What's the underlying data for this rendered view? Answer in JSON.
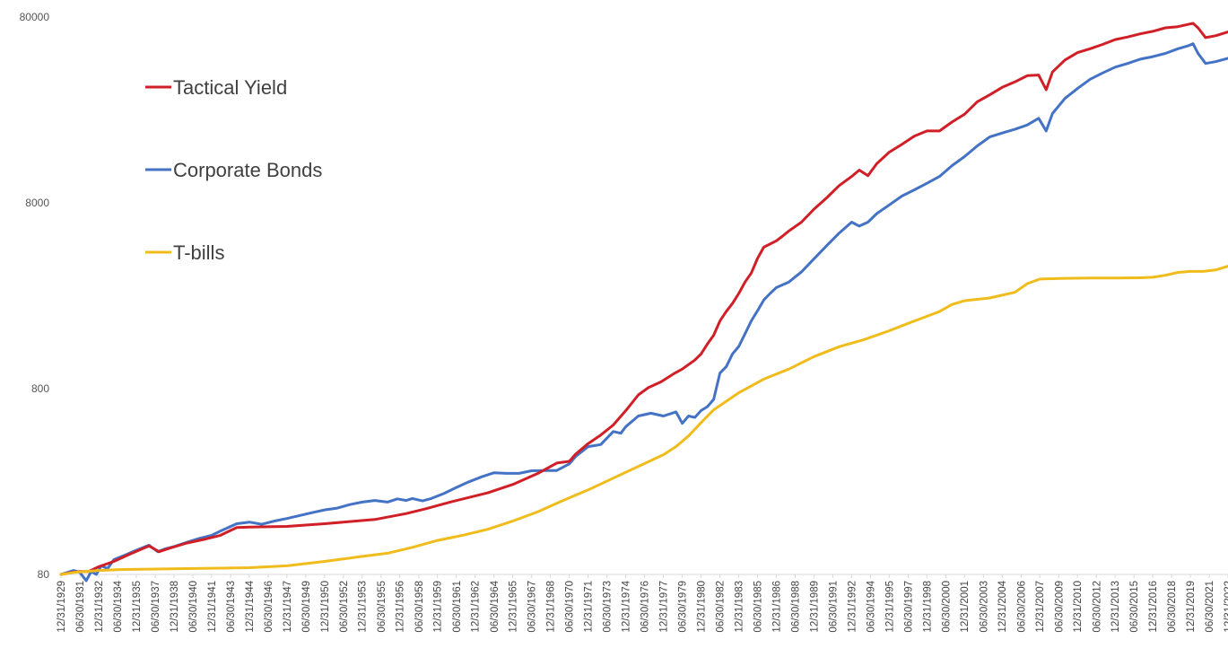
{
  "chart_data": {
    "type": "line",
    "title": "",
    "xlabel": "",
    "ylabel": "",
    "y_scale": "log",
    "ylim": [
      80,
      80000
    ],
    "grid": false,
    "legend_position": "top-left",
    "y_ticks": [
      "80000",
      "8000",
      "800",
      "80"
    ],
    "x_tick_labels": [
      "12/31/1929",
      "06/30/1931",
      "12/31/1932",
      "06/30/1934",
      "12/31/1935",
      "06/30/1937",
      "12/31/1938",
      "06/30/1940",
      "12/31/1941",
      "06/30/1943",
      "12/31/1944",
      "06/30/1946",
      "12/31/1947",
      "06/30/1949",
      "12/31/1950",
      "06/30/1952",
      "12/31/1953",
      "06/30/1955",
      "12/31/1956",
      "06/30/1958",
      "12/31/1959",
      "06/30/1961",
      "12/31/1962",
      "06/30/1964",
      "12/31/1965",
      "06/30/1967",
      "12/31/1968",
      "06/30/1970",
      "12/31/1971",
      "06/30/1973",
      "12/31/1974",
      "06/30/1976",
      "12/31/1977",
      "06/30/1979",
      "12/31/1980",
      "06/30/1982",
      "12/31/1983",
      "06/30/1985",
      "12/31/1986",
      "06/30/1988",
      "12/31/1989",
      "06/30/1991",
      "12/31/1992",
      "06/30/1994",
      "12/31/1995",
      "06/30/1997",
      "12/31/1998",
      "06/30/2000",
      "12/31/2001",
      "06/30/2003",
      "12/31/2004",
      "06/30/2006",
      "12/31/2007",
      "06/30/2009",
      "12/31/2010",
      "06/30/2012",
      "12/31/2013",
      "06/30/2015",
      "12/31/2016",
      "06/30/2018",
      "12/31/2019",
      "06/30/2021",
      "12/31/2022"
    ],
    "x_tick_years": [
      1929.99,
      1931.5,
      1932.99,
      1934.5,
      1935.99,
      1937.5,
      1938.99,
      1940.5,
      1941.99,
      1943.5,
      1944.99,
      1946.5,
      1947.99,
      1949.5,
      1950.99,
      1952.5,
      1953.99,
      1955.5,
      1956.99,
      1958.5,
      1959.99,
      1961.5,
      1962.99,
      1964.5,
      1965.99,
      1967.5,
      1968.99,
      1970.5,
      1971.99,
      1973.5,
      1974.99,
      1976.5,
      1977.99,
      1979.5,
      1980.99,
      1982.5,
      1983.99,
      1985.5,
      1986.99,
      1988.5,
      1989.99,
      1991.5,
      1992.99,
      1994.5,
      1995.99,
      1997.5,
      1998.99,
      2000.5,
      2001.99,
      2003.5,
      2004.99,
      2006.5,
      2007.99,
      2009.5,
      2010.99,
      2012.5,
      2013.99,
      2015.5,
      2016.99,
      2018.5,
      2019.99,
      2021.5,
      2022.99
    ],
    "series": [
      {
        "name": "Tactical Yield",
        "color": "#d01f26",
        "x": [
          1929.99,
          1930.8,
          1931.5,
          1932.2,
          1933.0,
          1934.2,
          1935.5,
          1937.0,
          1937.8,
          1938.5,
          1940.0,
          1941.5,
          1942.7,
          1943.5,
          1944.0,
          1945.0,
          1948.0,
          1951.0,
          1955.0,
          1957.5,
          1959.0,
          1961.0,
          1964.0,
          1966.0,
          1968.0,
          1969.5,
          1970.5,
          1971.0,
          1972.0,
          1973.0,
          1974.0,
          1975.0,
          1976.0,
          1976.8,
          1977.8,
          1978.8,
          1979.5,
          1980.5,
          1981.0,
          1981.5,
          1982.0,
          1982.5,
          1983.0,
          1983.5,
          1984.0,
          1984.5,
          1985.0,
          1985.5,
          1986.0,
          1987.0,
          1987.5,
          1988.0,
          1989.0,
          1990.0,
          1991.0,
          1992.0,
          1993.0,
          1993.6,
          1994.3,
          1995.0,
          1996.0,
          1997.0,
          1998.0,
          1999.0,
          2000.0,
          2001.0,
          2002.0,
          2003.0,
          2004.0,
          2005.0,
          2006.0,
          2007.0,
          2007.9,
          2008.5,
          2009.0,
          2010.0,
          2011.0,
          2012.0,
          2013.0,
          2014.0,
          2015.0,
          2016.0,
          2017.0,
          2018.0,
          2019.0,
          2019.8,
          2020.2,
          2020.6,
          2021.2,
          2022.0,
          2022.99
        ],
        "values": [
          80,
          82,
          83,
          83,
          88,
          94,
          103,
          114,
          106,
          110,
          118,
          124,
          130,
          138,
          143,
          144,
          145,
          150,
          158,
          170,
          180,
          196,
          220,
          244,
          280,
          318,
          325,
          355,
          405,
          450,
          510,
          610,
          740,
          810,
          870,
          960,
          1020,
          1140,
          1230,
          1390,
          1550,
          1850,
          2080,
          2300,
          2600,
          3000,
          3350,
          4020,
          4620,
          5000,
          5300,
          5650,
          6300,
          7400,
          8500,
          9900,
          11100,
          12000,
          11200,
          13000,
          15000,
          16500,
          18300,
          19500,
          19500,
          21800,
          24000,
          28000,
          30500,
          33500,
          35800,
          38700,
          39000,
          32500,
          40500,
          47000,
          51500,
          54000,
          57000,
          60500,
          62500,
          65000,
          67000,
          70000,
          71000,
          73000,
          74000,
          70000,
          62000,
          63500,
          66500
        ]
      },
      {
        "name": "Corporate Bonds",
        "color": "#4472c4",
        "x": [
          1929.99,
          1930.5,
          1931.0,
          1931.5,
          1932.0,
          1932.4,
          1932.8,
          1933.2,
          1933.7,
          1934.2,
          1935.0,
          1936.0,
          1937.0,
          1937.7,
          1938.3,
          1939.0,
          1940.0,
          1941.0,
          1942.0,
          1943.0,
          1944.0,
          1945.0,
          1946.0,
          1947.0,
          1948.0,
          1949.0,
          1950.0,
          1951.0,
          1952.0,
          1953.0,
          1954.0,
          1955.0,
          1956.0,
          1956.8,
          1957.5,
          1958.0,
          1958.8,
          1959.5,
          1960.5,
          1961.5,
          1962.5,
          1963.5,
          1964.5,
          1965.5,
          1966.5,
          1967.5,
          1968.5,
          1969.5,
          1970.5,
          1971.0,
          1972.0,
          1973.0,
          1974.0,
          1974.6,
          1975.0,
          1976.0,
          1977.0,
          1978.0,
          1979.0,
          1979.5,
          1980.0,
          1980.5,
          1981.0,
          1981.5,
          1982.0,
          1982.5,
          1983.0,
          1983.5,
          1984.0,
          1984.5,
          1985.0,
          1985.5,
          1986.0,
          1986.5,
          1987.0,
          1988.0,
          1989.0,
          1990.0,
          1991.0,
          1992.0,
          1993.0,
          1993.6,
          1994.3,
          1995.0,
          1996.0,
          1997.0,
          1998.0,
          1999.0,
          2000.0,
          2001.0,
          2002.0,
          2003.0,
          2004.0,
          2005.0,
          2006.0,
          2007.0,
          2007.9,
          2008.5,
          2009.0,
          2010.0,
          2011.0,
          2012.0,
          2013.0,
          2014.0,
          2015.0,
          2016.0,
          2017.0,
          2018.0,
          2019.0,
          2019.8,
          2020.2,
          2020.6,
          2021.2,
          2022.0,
          2022.99
        ],
        "values": [
          80,
          82,
          84,
          82,
          74,
          83,
          80,
          89,
          86,
          96,
          101,
          108,
          115,
          106,
          110,
          113,
          119,
          125,
          130,
          140,
          150,
          153,
          149,
          155,
          160,
          166,
          172,
          178,
          182,
          190,
          196,
          200,
          196,
          204,
          200,
          205,
          199,
          205,
          218,
          235,
          252,
          268,
          282,
          280,
          280,
          289,
          290,
          290,
          315,
          345,
          390,
          400,
          470,
          460,
          500,
          570,
          590,
          570,
          600,
          520,
          570,
          560,
          610,
          640,
          700,
          970,
          1050,
          1230,
          1350,
          1580,
          1850,
          2100,
          2400,
          2600,
          2800,
          3000,
          3400,
          4000,
          4700,
          5500,
          6300,
          6000,
          6300,
          7000,
          7800,
          8700,
          9400,
          10200,
          11100,
          12700,
          14200,
          16200,
          18100,
          19000,
          19900,
          21000,
          22800,
          19500,
          24200,
          29200,
          33000,
          37000,
          40000,
          43000,
          45000,
          47500,
          49000,
          51000,
          54000,
          56000,
          57500,
          51000,
          45000,
          46000,
          48000
        ]
      },
      {
        "name": "T-bills",
        "color": "#f0bc1c",
        "x": [
          1929.99,
          1931.0,
          1932.0,
          1933.0,
          1935.0,
          1940.0,
          1945.0,
          1948.0,
          1951.0,
          1954.0,
          1956.0,
          1958.0,
          1960.0,
          1962.0,
          1964.0,
          1966.0,
          1968.0,
          1970.0,
          1972.0,
          1974.0,
          1976.0,
          1978.0,
          1979.0,
          1980.0,
          1981.0,
          1982.0,
          1984.0,
          1986.0,
          1988.0,
          1990.0,
          1992.0,
          1994.0,
          1996.0,
          1998.0,
          2000.0,
          2001.0,
          2002.0,
          2004.0,
          2006.0,
          2007.0,
          2008.0,
          2010.0,
          2012.0,
          2014.0,
          2016.0,
          2017.0,
          2018.0,
          2019.0,
          2020.0,
          2021.0,
          2022.0,
          2022.99
        ],
        "values": [
          80,
          82,
          83,
          84,
          85,
          86,
          87,
          89,
          94,
          100,
          104,
          112,
          122,
          130,
          140,
          155,
          174,
          200,
          228,
          264,
          305,
          353,
          390,
          445,
          525,
          615,
          760,
          900,
          1020,
          1190,
          1345,
          1470,
          1640,
          1850,
          2080,
          2270,
          2380,
          2460,
          2640,
          2940,
          3110,
          3140,
          3150,
          3150,
          3160,
          3180,
          3260,
          3380,
          3420,
          3420,
          3480,
          3650
        ]
      }
    ],
    "axis_bounds": {
      "x_start": 1929.99,
      "x_end": 2022.99
    }
  }
}
